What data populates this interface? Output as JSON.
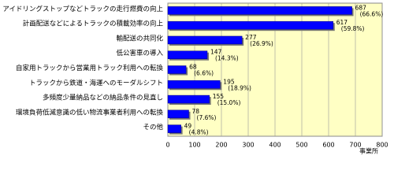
{
  "chart_data": {
    "type": "bar",
    "orientation": "horizontal",
    "categories": [
      "アイドリングストップなどトラックの走行燃費の向上",
      "計画配送などによるトラックの積載効率の向上",
      "輸配送の共同化",
      "低公害車の導入",
      "自家用トラックから営業用トラック利用への転換",
      "トラックから鉄道・海運へのモーダルシフト",
      "多頻度少量納品などの納品条件の見直し",
      "環境負荷低減意識の低い物流事業者利用への転換",
      "その他"
    ],
    "values": [
      687,
      617,
      277,
      147,
      68,
      195,
      155,
      78,
      49
    ],
    "percent_labels": [
      "(66.6%)",
      "(59.8%)",
      "(26.9%)",
      "(14.3%)",
      "(6.6%)",
      "(18.9%)",
      "(15.0%)",
      "(7.6%)",
      "(4.8%)"
    ],
    "color": "#0000ff",
    "xlim": [
      0,
      800
    ],
    "xticks": [
      0,
      100,
      200,
      300,
      400,
      500,
      600,
      700,
      800
    ],
    "x_unit": "事業所",
    "grid": true
  }
}
